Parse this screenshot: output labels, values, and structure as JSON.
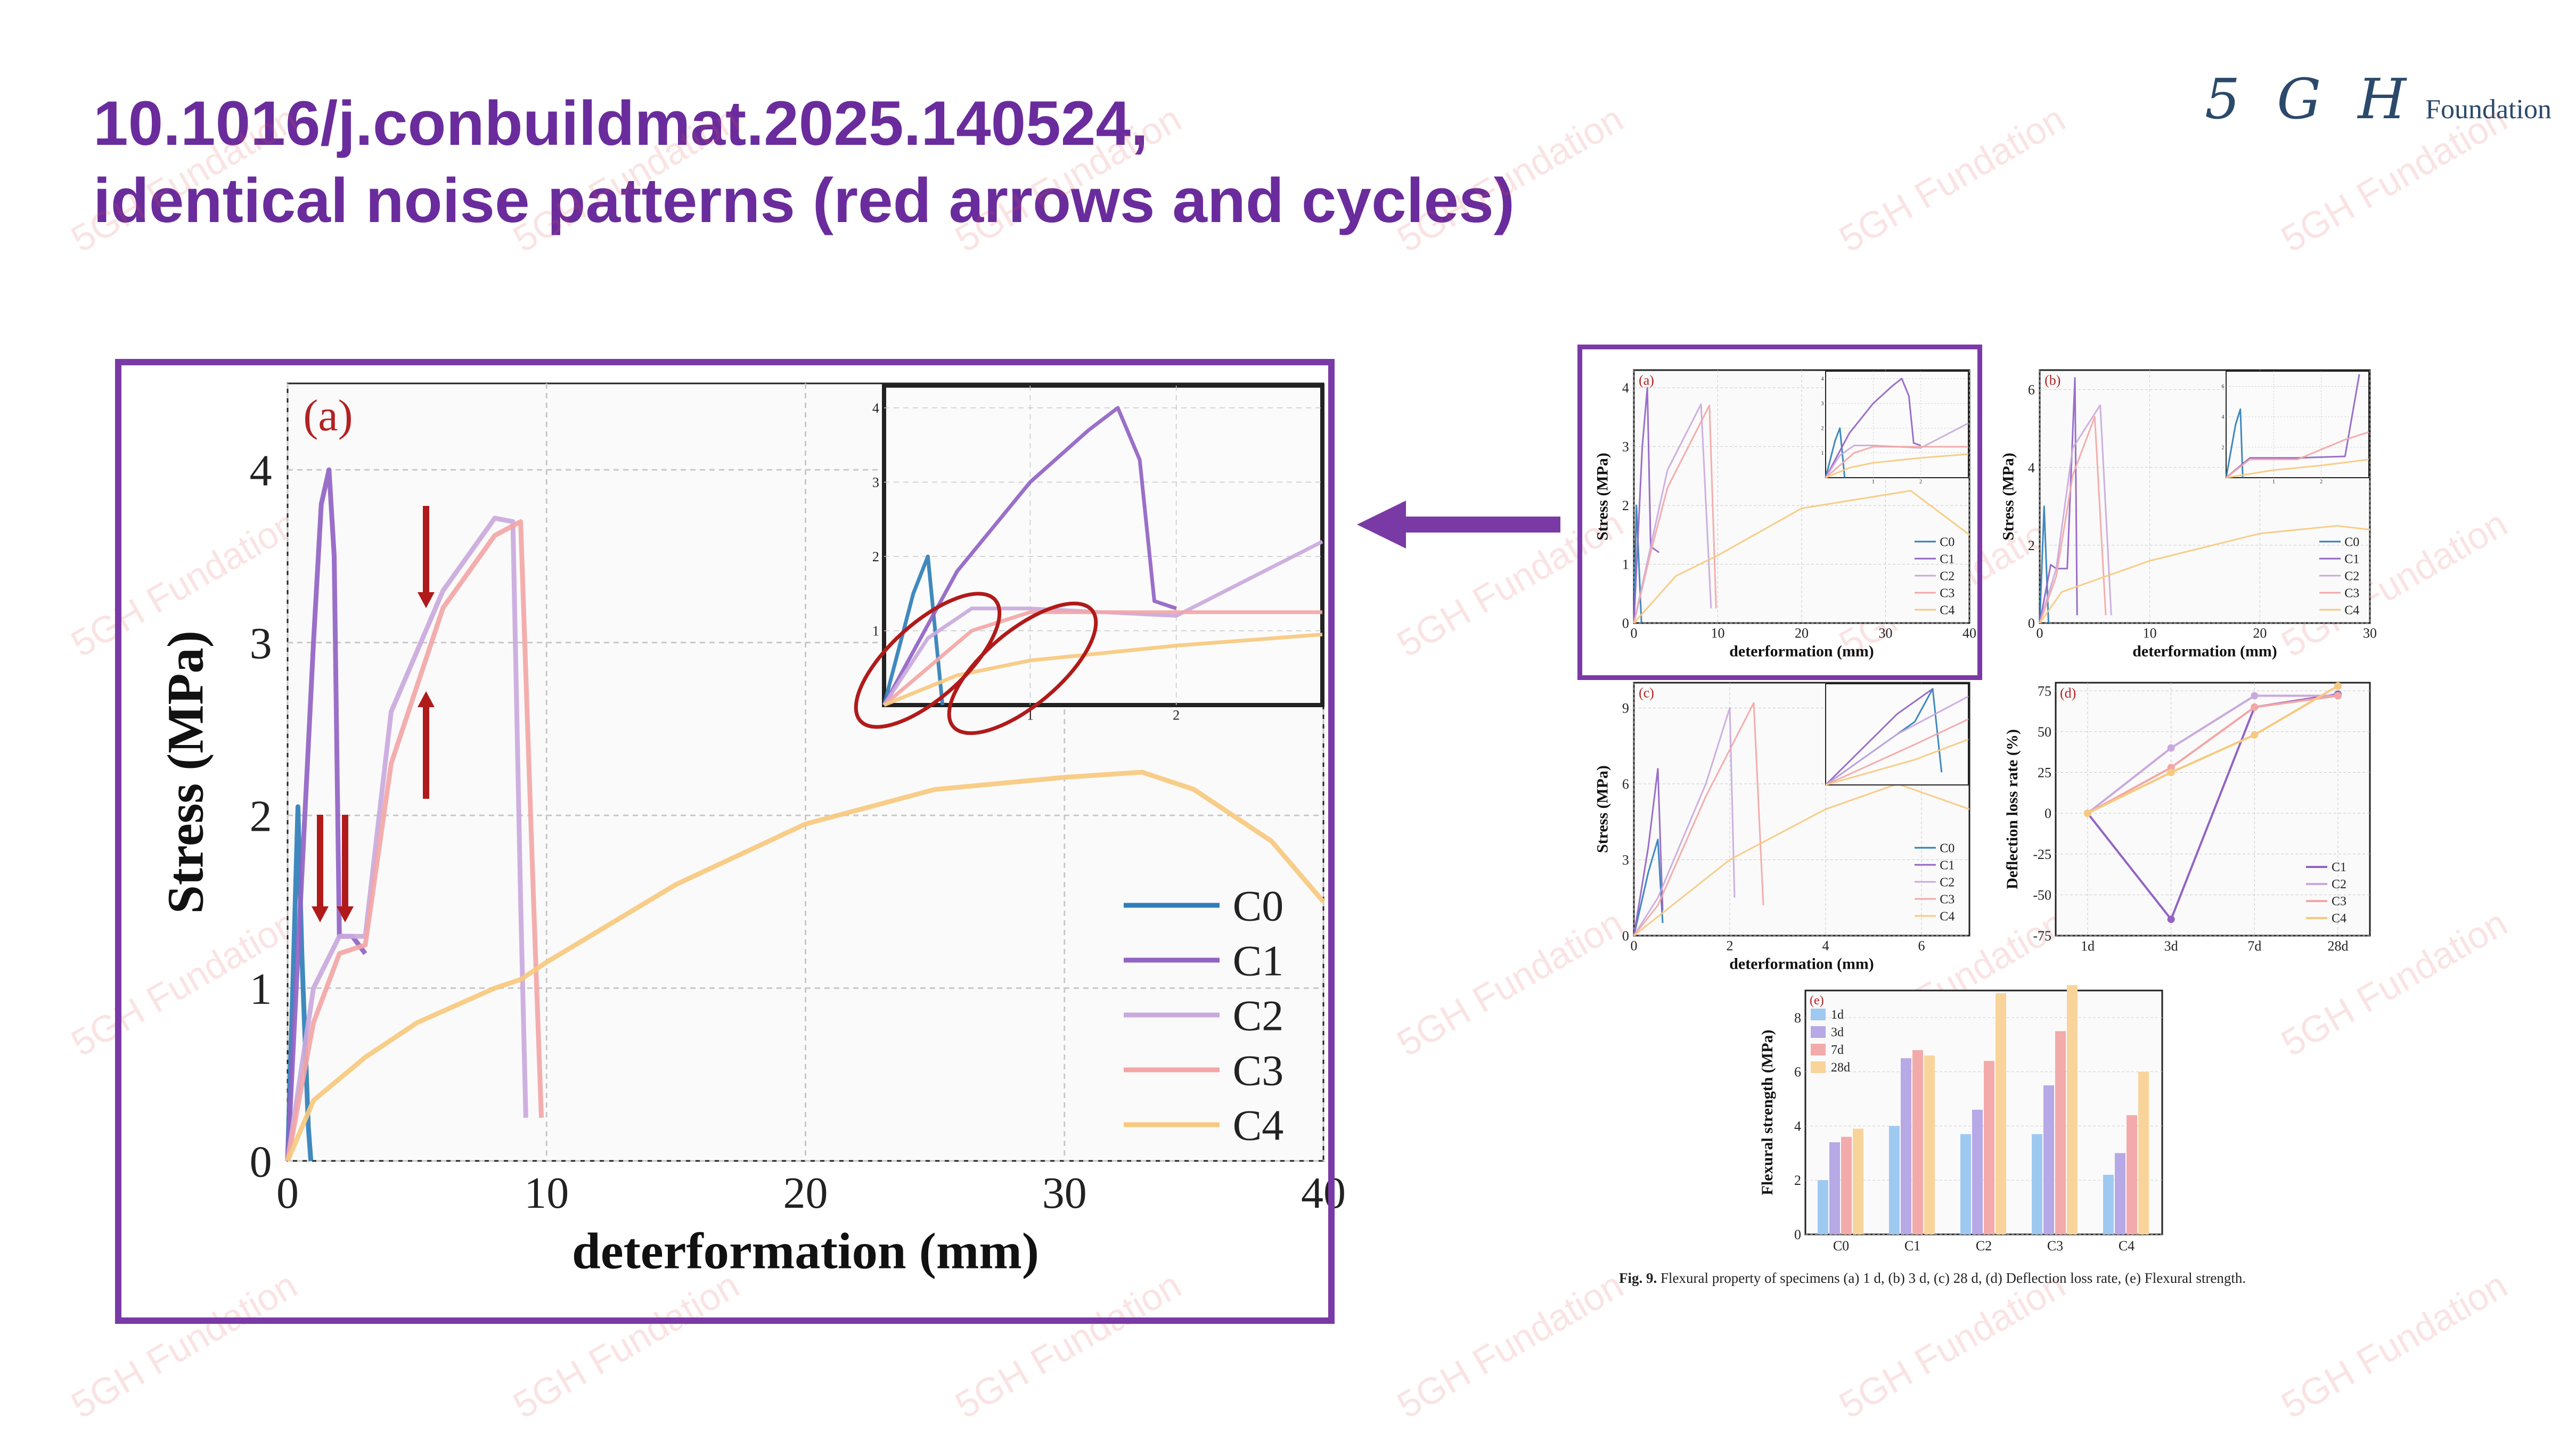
{
  "title": {
    "line1": "10.1016/j.conbuildmat.2025.140524,",
    "line2": "identical noise patterns (red arrows and cycles)"
  },
  "logo": {
    "mark": "5 G H",
    "word": "Foundation"
  },
  "watermark_text": "5GH Fundation",
  "colors": {
    "accent": "#6a2c9c",
    "C0": "#2f7fb8",
    "C1": "#9163c4",
    "C2": "#c9a9dd",
    "C3": "#f3a6a6",
    "C4": "#f7c97e",
    "annotation": "#b11a1a"
  },
  "caption": {
    "label": "Fig. 9.",
    "text": "Flexural property of specimens (a) 1 d, (b) 3 d, (c) 28 d, (d) Deflection loss rate, (e) Flexural strength."
  },
  "chart_data": [
    {
      "type": "line",
      "panel": "(a)",
      "xlabel": "deterformation (mm)",
      "ylabel": "Stress (MPa)",
      "xlim": [
        0,
        40
      ],
      "ylim": [
        0,
        4.5
      ],
      "xticks": [
        0,
        10,
        20,
        30,
        40
      ],
      "yticks": [
        0,
        1,
        2,
        3,
        4
      ],
      "legend": "bottom-right",
      "grid": true,
      "series": [
        {
          "name": "C0",
          "x": [
            0,
            0.2,
            0.4,
            0.55,
            0.7,
            0.8,
            0.9
          ],
          "y": [
            0,
            1.0,
            2.05,
            1.2,
            0.6,
            0.2,
            0
          ]
        },
        {
          "name": "C1",
          "x": [
            0,
            0.5,
            1.0,
            1.3,
            1.6,
            1.8,
            2.0,
            2.5,
            3.0
          ],
          "y": [
            0,
            1.5,
            3.0,
            3.8,
            4.0,
            3.5,
            1.3,
            1.3,
            1.2
          ]
        },
        {
          "name": "C2",
          "x": [
            0,
            1,
            2,
            3,
            4,
            6,
            8,
            8.7,
            9.0,
            9.2
          ],
          "y": [
            0,
            1.0,
            1.3,
            1.3,
            2.6,
            3.3,
            3.72,
            3.7,
            1.5,
            0.25
          ]
        },
        {
          "name": "C3",
          "x": [
            0,
            1,
            2,
            3,
            4,
            6,
            8,
            9.0,
            9.5,
            9.8
          ],
          "y": [
            0,
            0.8,
            1.2,
            1.25,
            2.3,
            3.2,
            3.62,
            3.7,
            1.5,
            0.25
          ]
        },
        {
          "name": "C4",
          "x": [
            0,
            1,
            3,
            5,
            8,
            9,
            10,
            15,
            20,
            25,
            30,
            33,
            35,
            38,
            40
          ],
          "y": [
            0,
            0.35,
            0.6,
            0.8,
            1.0,
            1.05,
            1.15,
            1.6,
            1.95,
            2.15,
            2.22,
            2.25,
            2.15,
            1.85,
            1.5
          ]
        }
      ],
      "inset": {
        "xlim": [
          0,
          3
        ],
        "ylim": [
          0,
          4.3
        ],
        "xticks": [
          1,
          2
        ],
        "yticks": [
          1,
          2,
          3,
          4
        ],
        "series": [
          {
            "name": "C0",
            "x": [
              0,
              0.2,
              0.3,
              0.35,
              0.4
            ],
            "y": [
              0,
              1.5,
              2.0,
              1.0,
              0
            ]
          },
          {
            "name": "C1",
            "x": [
              0,
              0.5,
              1.0,
              1.4,
              1.6,
              1.75,
              1.85,
              2.0
            ],
            "y": [
              0,
              1.8,
              3.0,
              3.7,
              4.0,
              3.3,
              1.4,
              1.3
            ]
          },
          {
            "name": "C2",
            "x": [
              0,
              0.3,
              0.6,
              1.0,
              2.0,
              2.5,
              3.0
            ],
            "y": [
              0,
              0.9,
              1.3,
              1.3,
              1.2,
              1.7,
              2.2
            ]
          },
          {
            "name": "C3",
            "x": [
              0,
              0.3,
              0.6,
              1.0,
              2.0,
              3.0
            ],
            "y": [
              0,
              0.5,
              1.0,
              1.25,
              1.25,
              1.25
            ]
          },
          {
            "name": "C4",
            "x": [
              0,
              0.5,
              1.0,
              2.0,
              3.0
            ],
            "y": [
              0,
              0.4,
              0.6,
              0.8,
              0.95
            ]
          }
        ]
      }
    },
    {
      "type": "line",
      "panel": "(a)",
      "xlabel": "deterformation (mm)",
      "ylabel": "Stress (MPa)",
      "xlim": [
        0,
        40
      ],
      "ylim": [
        0,
        4.3
      ],
      "xticks": [
        0,
        10,
        20,
        30,
        40
      ],
      "yticks": [
        0,
        1,
        2,
        3,
        4
      ],
      "series": [
        {
          "name": "C0",
          "x": [
            0,
            0.3,
            0.6,
            0.9
          ],
          "y": [
            0,
            2.0,
            1.0,
            0
          ]
        },
        {
          "name": "C1",
          "x": [
            0,
            1.0,
            1.6,
            2.0,
            3.0
          ],
          "y": [
            0,
            3.0,
            4.0,
            1.3,
            1.2
          ]
        },
        {
          "name": "C2",
          "x": [
            0,
            2,
            4,
            8,
            9.2
          ],
          "y": [
            0,
            1.3,
            2.6,
            3.72,
            0.25
          ]
        },
        {
          "name": "C3",
          "x": [
            0,
            2,
            4,
            9,
            9.8
          ],
          "y": [
            0,
            1.2,
            2.3,
            3.7,
            0.25
          ]
        },
        {
          "name": "C4",
          "x": [
            0,
            5,
            10,
            20,
            33,
            40
          ],
          "y": [
            0,
            0.8,
            1.15,
            1.95,
            2.25,
            1.5
          ]
        }
      ]
    },
    {
      "type": "line",
      "panel": "(b)",
      "xlabel": "deterformation (mm)",
      "ylabel": "Stress (MPa)",
      "xlim": [
        0,
        30
      ],
      "ylim": [
        0,
        6.5
      ],
      "xticks": [
        0,
        10,
        20,
        30
      ],
      "yticks": [
        0,
        2,
        4,
        6
      ],
      "series": [
        {
          "name": "C0",
          "x": [
            0,
            0.4,
            0.8
          ],
          "y": [
            0,
            3.0,
            0
          ]
        },
        {
          "name": "C1",
          "x": [
            0,
            1.0,
            1.5,
            2.5,
            3.2,
            3.4
          ],
          "y": [
            0,
            1.5,
            1.4,
            1.4,
            6.3,
            0.2
          ]
        },
        {
          "name": "C2",
          "x": [
            0,
            1.5,
            3,
            5.5,
            6.5
          ],
          "y": [
            0,
            1.4,
            4.5,
            5.6,
            0.2
          ]
        },
        {
          "name": "C3",
          "x": [
            0,
            1.5,
            3,
            5,
            6
          ],
          "y": [
            0,
            1.2,
            3.8,
            5.3,
            0.2
          ]
        },
        {
          "name": "C4",
          "x": [
            0,
            2,
            5,
            10,
            20,
            27,
            30
          ],
          "y": [
            0,
            0.8,
            1.1,
            1.6,
            2.3,
            2.5,
            2.4
          ]
        }
      ]
    },
    {
      "type": "line",
      "panel": "(c)",
      "xlabel": "deterformation (mm)",
      "ylabel": "Stress (MPa)",
      "xlim": [
        0,
        7
      ],
      "ylim": [
        0,
        10
      ],
      "xticks": [
        0,
        2,
        4,
        6
      ],
      "yticks": [
        0,
        3,
        6,
        9
      ],
      "series": [
        {
          "name": "C0",
          "x": [
            0,
            0.3,
            0.5,
            0.6
          ],
          "y": [
            0,
            2.5,
            3.8,
            0.5
          ]
        },
        {
          "name": "C1",
          "x": [
            0,
            0.3,
            0.5,
            0.6
          ],
          "y": [
            0,
            3.5,
            6.6,
            1.0
          ]
        },
        {
          "name": "C2",
          "x": [
            0,
            0.5,
            1.5,
            2.0,
            2.1
          ],
          "y": [
            0,
            1.5,
            6.0,
            9.0,
            1.5
          ]
        },
        {
          "name": "C3",
          "x": [
            0,
            0.5,
            1.5,
            2.5,
            2.7
          ],
          "y": [
            0,
            1.2,
            5.5,
            9.2,
            1.2
          ]
        },
        {
          "name": "C4",
          "x": [
            0,
            1,
            2,
            4,
            5.5,
            7
          ],
          "y": [
            0,
            1.5,
            3.0,
            5.0,
            6.0,
            5.0
          ]
        }
      ]
    },
    {
      "type": "line",
      "panel": "(d)",
      "xlabel": "",
      "ylabel": "Deflection loss rate (%)",
      "categories": [
        "1d",
        "3d",
        "7d",
        "28d"
      ],
      "ylim": [
        -75,
        80
      ],
      "yticks": [
        -75,
        -50,
        -25,
        0,
        25,
        50,
        75
      ],
      "series": [
        {
          "name": "C1",
          "values": [
            0,
            -65,
            65,
            73
          ]
        },
        {
          "name": "C2",
          "values": [
            0,
            40,
            72,
            72
          ]
        },
        {
          "name": "C3",
          "values": [
            0,
            28,
            65,
            72
          ]
        },
        {
          "name": "C4",
          "values": [
            0,
            25,
            48,
            78
          ]
        }
      ]
    },
    {
      "type": "bar",
      "panel": "(e)",
      "xlabel": "",
      "ylabel": "Flexural strength (MPa)",
      "categories": [
        "C0",
        "C1",
        "C2",
        "C3",
        "C4"
      ],
      "ylim": [
        0,
        9
      ],
      "yticks": [
        0,
        2,
        4,
        6,
        8
      ],
      "series": [
        {
          "name": "1d",
          "values": [
            2.0,
            4.0,
            3.7,
            3.7,
            2.2
          ]
        },
        {
          "name": "3d",
          "values": [
            3.4,
            6.5,
            4.6,
            5.5,
            3.0
          ]
        },
        {
          "name": "7d",
          "values": [
            3.6,
            6.8,
            6.4,
            7.5,
            4.4
          ]
        },
        {
          "name": "28d",
          "values": [
            3.9,
            6.6,
            8.9,
            9.2,
            6.0
          ]
        }
      ]
    }
  ]
}
